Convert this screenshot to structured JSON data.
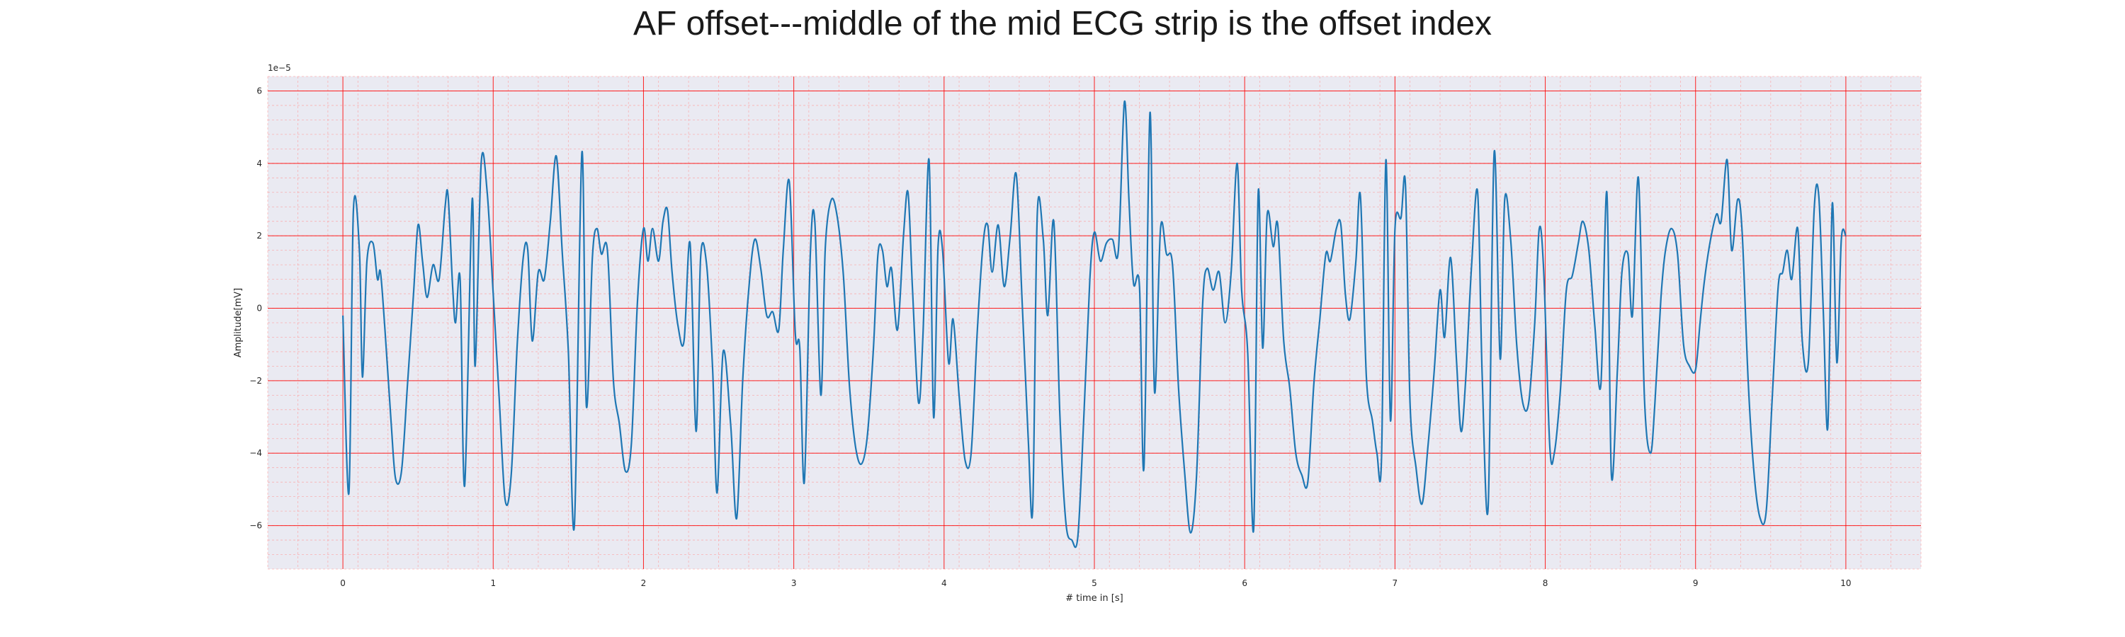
{
  "chart_data": {
    "type": "line",
    "title": "AF offset---middle of the mid ECG strip is the offset index",
    "xlabel": "# time in [s]",
    "ylabel": "Amplitude[mV]",
    "y_scale_label": "1e−5",
    "xlim": [
      -0.5,
      10.5
    ],
    "ylim": [
      -7.2e-05,
      6.4e-05
    ],
    "x_ticks": [
      0,
      1,
      2,
      3,
      4,
      5,
      6,
      7,
      8,
      9,
      10
    ],
    "x_tick_labels": [
      "0",
      "1",
      "2",
      "3",
      "4",
      "5",
      "6",
      "7",
      "8",
      "9",
      "10"
    ],
    "y_ticks": [
      -6,
      -4,
      -2,
      0,
      2,
      4,
      6
    ],
    "y_tick_labels": [
      "−6",
      "−4",
      "−2",
      "0",
      "2",
      "4",
      "6"
    ],
    "grid": "major and minor (ECG paper style)",
    "colors": {
      "line": "#1f77b4",
      "background": "#eaeaf2",
      "major_grid": "#ff0000",
      "minor_grid": "#ff9999"
    },
    "series": [
      {
        "points_unit": "1e-5 mV",
        "points": [
          [
            0.0,
            -0.2
          ],
          [
            0.04,
            -5.1
          ],
          [
            0.07,
            2.7
          ],
          [
            0.11,
            1.6
          ],
          [
            0.13,
            -1.9
          ],
          [
            0.16,
            1.3
          ],
          [
            0.2,
            1.8
          ],
          [
            0.23,
            0.8
          ],
          [
            0.25,
            1.0
          ],
          [
            0.28,
            -0.6
          ],
          [
            0.32,
            -3.1
          ],
          [
            0.35,
            -4.7
          ],
          [
            0.39,
            -4.5
          ],
          [
            0.43,
            -2.1
          ],
          [
            0.47,
            0.4
          ],
          [
            0.5,
            2.3
          ],
          [
            0.53,
            1.3
          ],
          [
            0.56,
            0.3
          ],
          [
            0.6,
            1.2
          ],
          [
            0.64,
            0.8
          ],
          [
            0.68,
            2.8
          ],
          [
            0.7,
            3.1
          ],
          [
            0.73,
            0.6
          ],
          [
            0.75,
            -0.4
          ],
          [
            0.78,
            0.8
          ],
          [
            0.81,
            -4.9
          ],
          [
            0.86,
            3.0
          ],
          [
            0.88,
            -1.6
          ],
          [
            0.92,
            4.0
          ],
          [
            0.96,
            3.2
          ],
          [
            1.0,
            0.4
          ],
          [
            1.04,
            -2.5
          ],
          [
            1.08,
            -5.3
          ],
          [
            1.12,
            -4.6
          ],
          [
            1.16,
            -1.0
          ],
          [
            1.2,
            1.4
          ],
          [
            1.23,
            1.6
          ],
          [
            1.26,
            -0.9
          ],
          [
            1.3,
            1.0
          ],
          [
            1.34,
            0.8
          ],
          [
            1.38,
            2.4
          ],
          [
            1.42,
            4.2
          ],
          [
            1.46,
            1.5
          ],
          [
            1.5,
            -1.2
          ],
          [
            1.54,
            -6.0
          ],
          [
            1.59,
            4.3
          ],
          [
            1.62,
            -2.7
          ],
          [
            1.66,
            1.4
          ],
          [
            1.69,
            2.2
          ],
          [
            1.72,
            1.5
          ],
          [
            1.76,
            1.6
          ],
          [
            1.8,
            -2.0
          ],
          [
            1.84,
            -3.2
          ],
          [
            1.88,
            -4.5
          ],
          [
            1.92,
            -3.7
          ],
          [
            1.96,
            0.2
          ],
          [
            2.0,
            2.2
          ],
          [
            2.03,
            1.3
          ],
          [
            2.06,
            2.2
          ],
          [
            2.1,
            1.3
          ],
          [
            2.13,
            2.4
          ],
          [
            2.16,
            2.7
          ],
          [
            2.19,
            1.0
          ],
          [
            2.23,
            -0.5
          ],
          [
            2.27,
            -0.9
          ],
          [
            2.31,
            1.8
          ],
          [
            2.35,
            -3.4
          ],
          [
            2.38,
            1.4
          ],
          [
            2.42,
            1.2
          ],
          [
            2.46,
            -1.7
          ],
          [
            2.49,
            -5.1
          ],
          [
            2.53,
            -1.2
          ],
          [
            2.58,
            -3.2
          ],
          [
            2.62,
            -5.8
          ],
          [
            2.66,
            -2.0
          ],
          [
            2.7,
            0.5
          ],
          [
            2.74,
            1.9
          ],
          [
            2.78,
            1.1
          ],
          [
            2.82,
            -0.2
          ],
          [
            2.86,
            -0.1
          ],
          [
            2.9,
            -0.6
          ],
          [
            2.93,
            1.6
          ],
          [
            2.97,
            3.5
          ],
          [
            3.01,
            -0.7
          ],
          [
            3.04,
            -1.1
          ],
          [
            3.07,
            -4.8
          ],
          [
            3.11,
            1.5
          ],
          [
            3.14,
            2.4
          ],
          [
            3.18,
            -2.4
          ],
          [
            3.21,
            1.7
          ],
          [
            3.25,
            3.0
          ],
          [
            3.29,
            2.5
          ],
          [
            3.33,
            0.9
          ],
          [
            3.37,
            -2.1
          ],
          [
            3.41,
            -3.8
          ],
          [
            3.45,
            -4.3
          ],
          [
            3.49,
            -3.5
          ],
          [
            3.53,
            -1.1
          ],
          [
            3.56,
            1.5
          ],
          [
            3.59,
            1.6
          ],
          [
            3.62,
            0.6
          ],
          [
            3.65,
            1.1
          ],
          [
            3.69,
            -0.6
          ],
          [
            3.73,
            2.0
          ],
          [
            3.76,
            3.2
          ],
          [
            3.79,
            0.5
          ],
          [
            3.83,
            -2.6
          ],
          [
            3.86,
            -0.7
          ],
          [
            3.9,
            4.1
          ],
          [
            3.93,
            -3.0
          ],
          [
            3.96,
            1.7
          ],
          [
            3.99,
            1.6
          ],
          [
            4.03,
            -1.5
          ],
          [
            4.06,
            -0.3
          ],
          [
            4.1,
            -2.4
          ],
          [
            4.14,
            -4.2
          ],
          [
            4.18,
            -4.0
          ],
          [
            4.22,
            -0.7
          ],
          [
            4.26,
            1.8
          ],
          [
            4.29,
            2.3
          ],
          [
            4.32,
            1.0
          ],
          [
            4.36,
            2.3
          ],
          [
            4.4,
            0.6
          ],
          [
            4.44,
            2.0
          ],
          [
            4.48,
            3.7
          ],
          [
            4.52,
            0.1
          ],
          [
            4.56,
            -3.6
          ],
          [
            4.59,
            -5.5
          ],
          [
            4.62,
            2.6
          ],
          [
            4.66,
            1.9
          ],
          [
            4.69,
            -0.2
          ],
          [
            4.73,
            2.4
          ],
          [
            4.77,
            -2.9
          ],
          [
            4.81,
            -5.9
          ],
          [
            4.85,
            -6.4
          ],
          [
            4.89,
            -6.3
          ],
          [
            4.93,
            -3.0
          ],
          [
            4.97,
            0.8
          ],
          [
            5.0,
            2.1
          ],
          [
            5.04,
            1.3
          ],
          [
            5.08,
            1.8
          ],
          [
            5.12,
            1.9
          ],
          [
            5.16,
            1.6
          ],
          [
            5.2,
            5.7
          ],
          [
            5.23,
            3.0
          ],
          [
            5.26,
            0.7
          ],
          [
            5.3,
            0.6
          ],
          [
            5.33,
            -4.4
          ],
          [
            5.37,
            5.4
          ],
          [
            5.4,
            -2.3
          ],
          [
            5.44,
            2.2
          ],
          [
            5.48,
            1.5
          ],
          [
            5.52,
            1.2
          ],
          [
            5.56,
            -2.2
          ],
          [
            5.6,
            -4.5
          ],
          [
            5.64,
            -6.2
          ],
          [
            5.68,
            -4.6
          ],
          [
            5.72,
            0.1
          ],
          [
            5.75,
            1.1
          ],
          [
            5.79,
            0.5
          ],
          [
            5.83,
            1.0
          ],
          [
            5.87,
            -0.4
          ],
          [
            5.91,
            1.0
          ],
          [
            5.95,
            4.0
          ],
          [
            5.98,
            0.5
          ],
          [
            6.02,
            -1.2
          ],
          [
            6.06,
            -6.1
          ],
          [
            6.09,
            3.2
          ],
          [
            6.12,
            -1.1
          ],
          [
            6.15,
            2.6
          ],
          [
            6.19,
            1.7
          ],
          [
            6.22,
            2.3
          ],
          [
            6.26,
            -0.9
          ],
          [
            6.3,
            -2.2
          ],
          [
            6.34,
            -4.0
          ],
          [
            6.38,
            -4.6
          ],
          [
            6.42,
            -4.8
          ],
          [
            6.46,
            -2.1
          ],
          [
            6.5,
            -0.3
          ],
          [
            6.54,
            1.5
          ],
          [
            6.57,
            1.3
          ],
          [
            6.61,
            2.2
          ],
          [
            6.64,
            2.3
          ],
          [
            6.67,
            0.4
          ],
          [
            6.7,
            -0.3
          ],
          [
            6.74,
            1.3
          ],
          [
            6.77,
            3.1
          ],
          [
            6.81,
            -1.9
          ],
          [
            6.85,
            -3.1
          ],
          [
            6.88,
            -4.0
          ],
          [
            6.91,
            -4.2
          ],
          [
            6.94,
            4.1
          ],
          [
            6.97,
            -3.1
          ],
          [
            7.0,
            2.2
          ],
          [
            7.04,
            2.5
          ],
          [
            7.07,
            3.4
          ],
          [
            7.1,
            -2.6
          ],
          [
            7.14,
            -4.4
          ],
          [
            7.18,
            -5.4
          ],
          [
            7.22,
            -3.8
          ],
          [
            7.26,
            -1.8
          ],
          [
            7.3,
            0.5
          ],
          [
            7.33,
            -0.8
          ],
          [
            7.37,
            1.4
          ],
          [
            7.41,
            -1.5
          ],
          [
            7.44,
            -3.4
          ],
          [
            7.47,
            -2.0
          ],
          [
            7.51,
            1.2
          ],
          [
            7.55,
            3.2
          ],
          [
            7.58,
            -1.8
          ],
          [
            7.62,
            -5.5
          ],
          [
            7.66,
            4.3
          ],
          [
            7.7,
            -1.4
          ],
          [
            7.73,
            3.0
          ],
          [
            7.77,
            1.9
          ],
          [
            7.81,
            -1.0
          ],
          [
            7.85,
            -2.6
          ],
          [
            7.89,
            -2.6
          ],
          [
            7.93,
            -0.4
          ],
          [
            7.96,
            2.2
          ],
          [
            7.99,
            1.0
          ],
          [
            8.03,
            -3.8
          ],
          [
            8.06,
            -4.0
          ],
          [
            8.1,
            -2.3
          ],
          [
            8.14,
            0.5
          ],
          [
            8.18,
            0.9
          ],
          [
            8.22,
            1.8
          ],
          [
            8.25,
            2.4
          ],
          [
            8.29,
            1.6
          ],
          [
            8.33,
            -0.5
          ],
          [
            8.37,
            -2.1
          ],
          [
            8.41,
            3.2
          ],
          [
            8.44,
            -4.6
          ],
          [
            8.48,
            -1.7
          ],
          [
            8.51,
            1.0
          ],
          [
            8.55,
            1.5
          ],
          [
            8.58,
            -0.2
          ],
          [
            8.62,
            3.6
          ],
          [
            8.66,
            -2.5
          ],
          [
            8.7,
            -4.0
          ],
          [
            8.73,
            -2.6
          ],
          [
            8.77,
            0.3
          ],
          [
            8.8,
            1.6
          ],
          [
            8.84,
            2.2
          ],
          [
            8.88,
            1.5
          ],
          [
            8.92,
            -1.0
          ],
          [
            8.96,
            -1.6
          ],
          [
            9.0,
            -1.7
          ],
          [
            9.03,
            -0.4
          ],
          [
            9.06,
            0.8
          ],
          [
            9.1,
            1.9
          ],
          [
            9.14,
            2.6
          ],
          [
            9.17,
            2.4
          ],
          [
            9.21,
            4.1
          ],
          [
            9.24,
            1.6
          ],
          [
            9.28,
            3.0
          ],
          [
            9.31,
            2.1
          ],
          [
            9.35,
            -2.0
          ],
          [
            9.39,
            -4.6
          ],
          [
            9.43,
            -5.8
          ],
          [
            9.47,
            -5.6
          ],
          [
            9.51,
            -2.5
          ],
          [
            9.55,
            0.6
          ],
          [
            9.58,
            1.0
          ],
          [
            9.61,
            1.6
          ],
          [
            9.64,
            0.8
          ],
          [
            9.68,
            2.2
          ],
          [
            9.71,
            -0.9
          ],
          [
            9.75,
            -1.5
          ],
          [
            9.79,
            2.8
          ],
          [
            9.82,
            3.1
          ],
          [
            9.85,
            -0.1
          ],
          [
            9.88,
            -3.3
          ],
          [
            9.91,
            2.9
          ],
          [
            9.94,
            -1.5
          ],
          [
            9.97,
            1.9
          ],
          [
            10.0,
            2.0
          ]
        ]
      }
    ]
  }
}
